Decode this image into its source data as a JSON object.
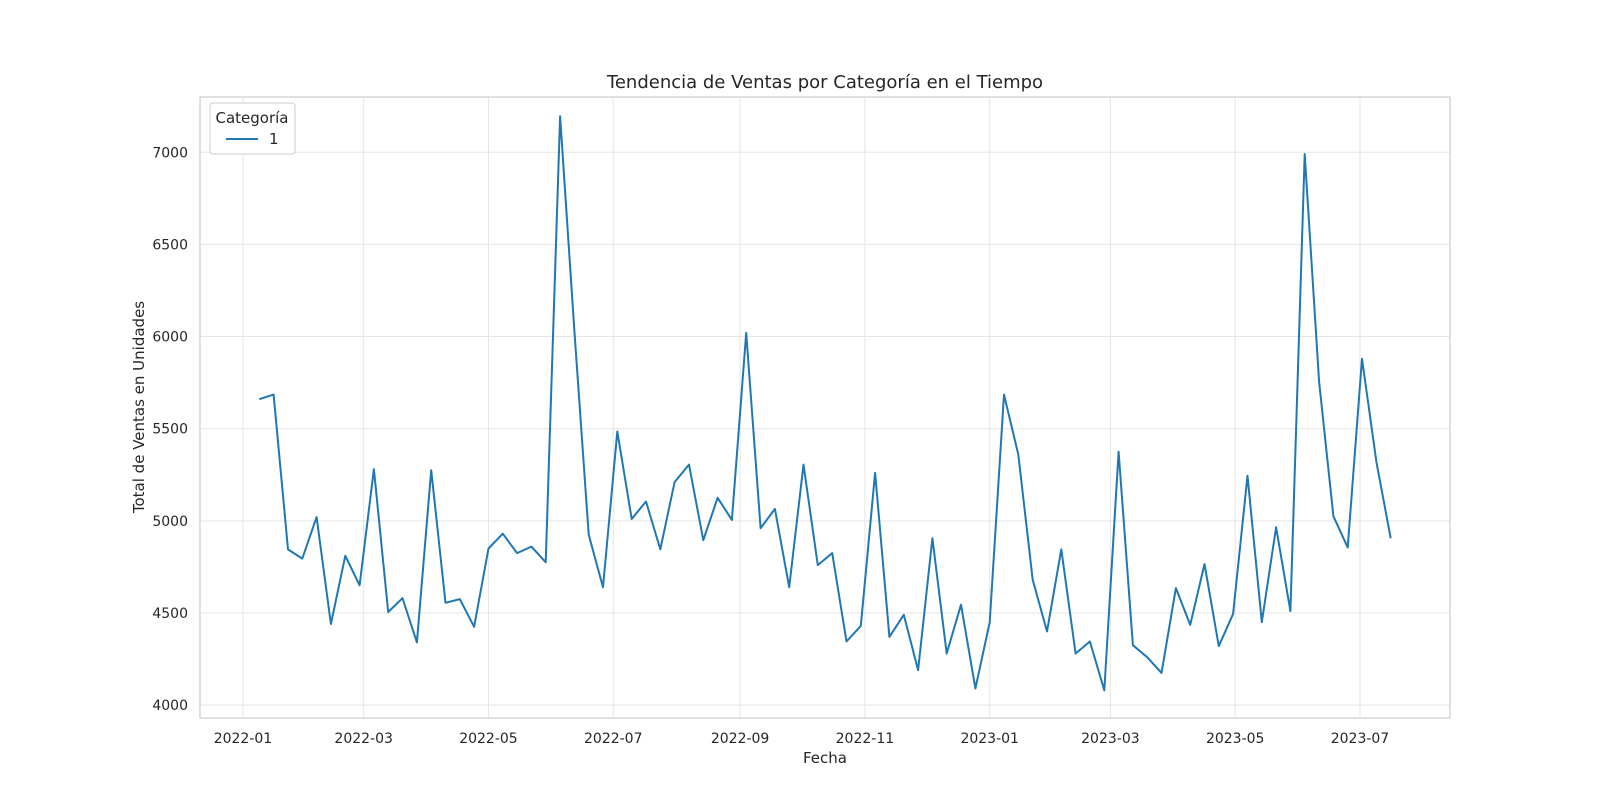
{
  "chart_data": {
    "type": "line",
    "title": "Tendencia de Ventas por Categoría en el Tiempo",
    "xlabel": "Fecha",
    "ylabel": "Total de Ventas en Unidades",
    "x_range": [
      "2021-12-11",
      "2023-08-14"
    ],
    "ylim": [
      3930,
      7300
    ],
    "x_ticks": [
      "2022-01-01",
      "2022-03-01",
      "2022-05-01",
      "2022-07-01",
      "2022-09-01",
      "2022-11-01",
      "2023-01-01",
      "2023-03-01",
      "2023-05-01",
      "2023-07-01"
    ],
    "x_tick_labels": [
      "2022-01",
      "2022-03",
      "2022-05",
      "2022-07",
      "2022-09",
      "2022-11",
      "2023-01",
      "2023-03",
      "2023-05",
      "2023-07"
    ],
    "y_ticks": [
      4000,
      4500,
      5000,
      5500,
      6000,
      6500,
      7000
    ],
    "y_tick_labels": [
      "4000",
      "4500",
      "5000",
      "5500",
      "6000",
      "6500",
      "7000"
    ],
    "grid": true,
    "legend": {
      "title": "Categoría",
      "position": "top-left"
    },
    "colors": {
      "series": "#1f77b4",
      "grid": "#e5e5e5",
      "frame": "#cccccc",
      "text": "#262626"
    },
    "series": [
      {
        "name": "1",
        "x": [
          "2022-01-09",
          "2022-01-16",
          "2022-01-23",
          "2022-01-30",
          "2022-02-06",
          "2022-02-13",
          "2022-02-20",
          "2022-02-27",
          "2022-03-06",
          "2022-03-13",
          "2022-03-20",
          "2022-03-27",
          "2022-04-03",
          "2022-04-10",
          "2022-04-17",
          "2022-04-24",
          "2022-05-01",
          "2022-05-08",
          "2022-05-15",
          "2022-05-22",
          "2022-05-29",
          "2022-06-05",
          "2022-06-12",
          "2022-06-19",
          "2022-06-26",
          "2022-07-03",
          "2022-07-10",
          "2022-07-17",
          "2022-07-24",
          "2022-07-31",
          "2022-08-07",
          "2022-08-14",
          "2022-08-21",
          "2022-08-28",
          "2022-09-04",
          "2022-09-11",
          "2022-09-18",
          "2022-09-25",
          "2022-10-02",
          "2022-10-09",
          "2022-10-16",
          "2022-10-23",
          "2022-10-30",
          "2022-11-06",
          "2022-11-13",
          "2022-11-20",
          "2022-11-27",
          "2022-12-04",
          "2022-12-11",
          "2022-12-18",
          "2022-12-25",
          "2023-01-01",
          "2023-01-08",
          "2023-01-15",
          "2023-01-22",
          "2023-01-29",
          "2023-02-05",
          "2023-02-12",
          "2023-02-19",
          "2023-02-26",
          "2023-03-05",
          "2023-03-12",
          "2023-03-19",
          "2023-03-26",
          "2023-04-02",
          "2023-04-09",
          "2023-04-16",
          "2023-04-23",
          "2023-04-30",
          "2023-05-07",
          "2023-05-14",
          "2023-05-21",
          "2023-05-28",
          "2023-06-04",
          "2023-06-11",
          "2023-06-18",
          "2023-06-25",
          "2023-07-02",
          "2023-07-09",
          "2023-07-16"
        ],
        "y": [
          5660,
          5685,
          4845,
          4795,
          5020,
          4440,
          4810,
          4650,
          5280,
          4505,
          4580,
          4340,
          5275,
          4555,
          4575,
          4425,
          4850,
          4930,
          4825,
          4860,
          4775,
          7195,
          6030,
          4925,
          4640,
          5485,
          5010,
          5105,
          4845,
          5210,
          5305,
          4895,
          5125,
          5005,
          6020,
          4960,
          5065,
          4640,
          5305,
          4760,
          4825,
          4345,
          4430,
          5260,
          4370,
          4490,
          4190,
          4905,
          4280,
          4545,
          4090,
          4450,
          5685,
          5360,
          4680,
          4400,
          4845,
          4280,
          4345,
          4080,
          5375,
          4325,
          4260,
          4175,
          4635,
          4435,
          4765,
          4320,
          4495,
          5245,
          4450,
          4965,
          4510,
          6990,
          5755,
          5025,
          4855,
          5880,
          5320,
          4905
        ]
      }
    ]
  }
}
